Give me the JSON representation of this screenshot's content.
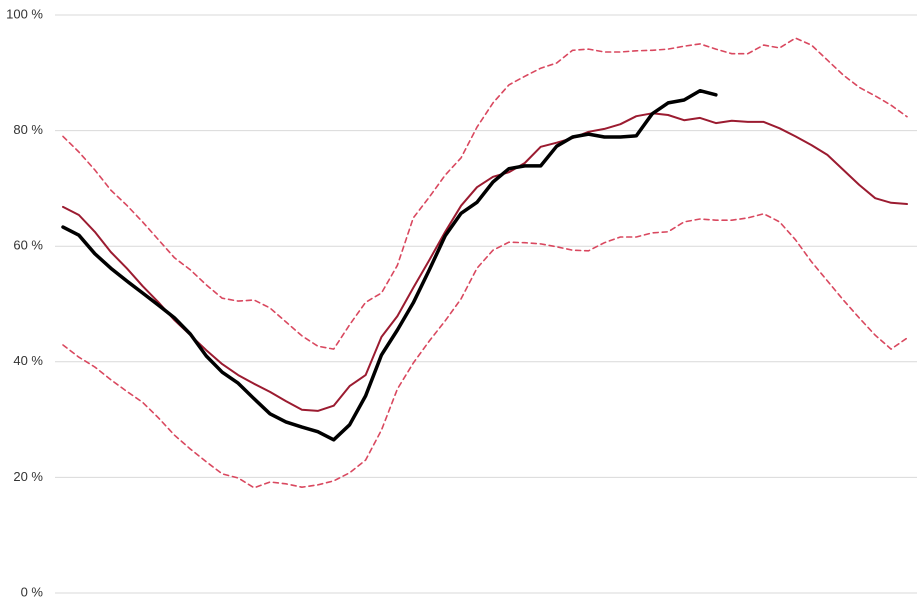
{
  "chart_data": {
    "type": "line",
    "ylim": [
      0,
      100
    ],
    "yticks": [
      {
        "value": 0,
        "label": "0 %"
      },
      {
        "value": 20,
        "label": "20 %"
      },
      {
        "value": 40,
        "label": "40 %"
      },
      {
        "value": 60,
        "label": "60 %"
      },
      {
        "value": 80,
        "label": "80 %"
      },
      {
        "value": 100,
        "label": "100 %"
      }
    ],
    "grid": true,
    "series": [
      {
        "color": "#d9485f",
        "dashed": true,
        "values": [
          79,
          76.3,
          73.2,
          69.7,
          67.1,
          64.2,
          61.1,
          58,
          55.9,
          53.3,
          51,
          50.5,
          50.7,
          49.3,
          46.9,
          44.5,
          42.7,
          42.2,
          46.4,
          50.3,
          51.9,
          56.7,
          64.9,
          68.5,
          72.3,
          75.3,
          80.6,
          84.8,
          87.9,
          89.4,
          90.8,
          91.7,
          93.9,
          94.1,
          93.6,
          93.6,
          93.8,
          93.9,
          94.1,
          94.6,
          95,
          94.1,
          93.3,
          93.3,
          94.8,
          94.3,
          96,
          94.8,
          92.2,
          89.6,
          87.5,
          86,
          84.4,
          82.4
        ]
      },
      {
        "color": "#d9485f",
        "dashed": true,
        "values": [
          42.9,
          40.8,
          39.1,
          36.9,
          34.9,
          33,
          30.3,
          27.3,
          24.9,
          22.7,
          20.6,
          19.9,
          18.2,
          19.2,
          18.9,
          18.3,
          18.7,
          19.4,
          20.8,
          23,
          28.2,
          35.3,
          39.8,
          43.6,
          47.1,
          50.9,
          56.2,
          59.3,
          60.7,
          60.6,
          60.4,
          59.9,
          59.3,
          59.2,
          60.6,
          61.6,
          61.6,
          62.3,
          62.5,
          64.2,
          64.7,
          64.5,
          64.5,
          64.9,
          65.6,
          64.2,
          61.1,
          57.3,
          54,
          50.7,
          47.6,
          44.6,
          42.2,
          44.1
        ]
      },
      {
        "color": "#9b1b30",
        "dashed": false,
        "values": [
          66.8,
          65.4,
          62.5,
          59,
          56.2,
          53.1,
          50.3,
          47.2,
          44.6,
          42,
          39.6,
          37.7,
          36.2,
          34.8,
          33.2,
          31.7,
          31.5,
          32.4,
          35.8,
          37.7,
          44.3,
          47.9,
          52.8,
          57.6,
          62.5,
          67,
          70.2,
          72,
          72.8,
          74.4,
          77.2,
          77.9,
          78.7,
          79.8,
          80.3,
          81.1,
          82.5,
          83,
          82.7,
          81.8,
          82.2,
          81.3,
          81.7,
          81.5,
          81.5,
          80.4,
          79,
          77.5,
          75.8,
          73.2,
          70.6,
          68.3,
          67.5,
          67.3
        ]
      },
      {
        "color": "#000000",
        "dashed": false,
        "values": [
          63.3,
          61.9,
          58.7,
          56.2,
          54,
          51.9,
          49.8,
          47.6,
          44.8,
          41,
          38.2,
          36.3,
          33.6,
          31,
          29.6,
          28.7,
          27.9,
          26.5,
          29.1,
          34.1,
          41.2,
          45.5,
          50.2,
          55.9,
          61.8,
          65.7,
          67.6,
          71.1,
          73.4,
          73.9,
          73.9,
          77.3,
          78.9,
          79.4,
          78.9,
          78.9,
          79.1,
          82.9,
          84.8,
          85.3,
          86.9,
          86.2,
          null,
          null,
          null,
          null,
          null,
          null,
          null,
          null,
          null,
          null,
          null,
          null
        ]
      }
    ]
  }
}
